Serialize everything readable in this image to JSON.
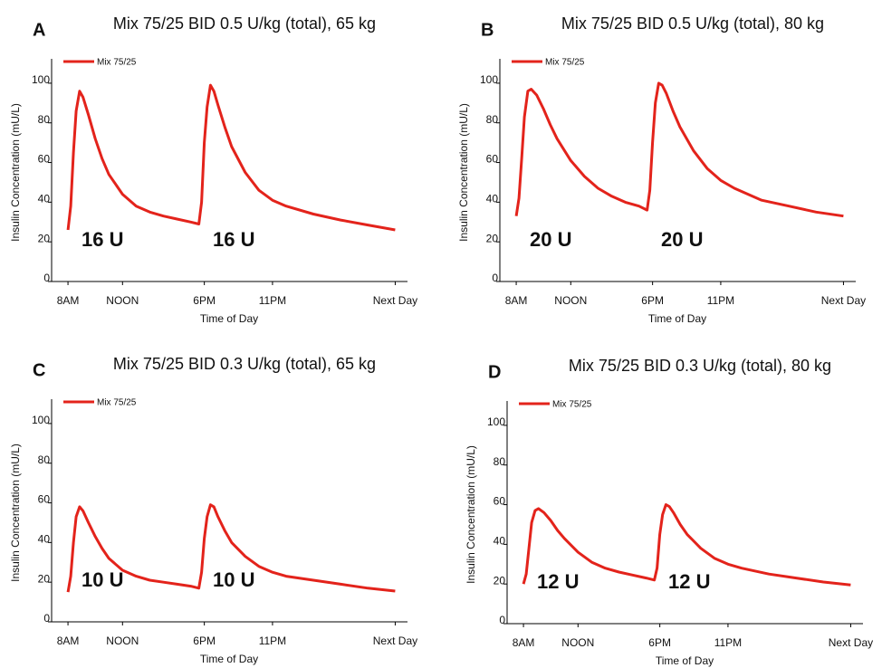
{
  "chart_data": [
    {
      "type": "line",
      "panel": "A",
      "title": "Mix 75/25 BID 0.5 U/kg (total), 65 kg",
      "ylabel": "Insulin Concentration (mU/L)",
      "xlabel": "Time of Day",
      "x": [
        8,
        8.2,
        8.4,
        8.6,
        8.85,
        9.1,
        9.5,
        10,
        10.5,
        11,
        12,
        13,
        14,
        15,
        16,
        17,
        17.6,
        17.8,
        18,
        18.2,
        18.45,
        18.7,
        19,
        19.5,
        20,
        21,
        22,
        23,
        24,
        26,
        28,
        30,
        32
      ],
      "series": [
        {
          "name": "Mix 75/25",
          "color": "#e3231b",
          "values": [
            26,
            38,
            65,
            86,
            96,
            93,
            84,
            72,
            62,
            54,
            44,
            38,
            35,
            33,
            31.5,
            30,
            29,
            40,
            70,
            88,
            99,
            96,
            89,
            78,
            68,
            55,
            46,
            41,
            38,
            34,
            31,
            28.5,
            26
          ]
        }
      ],
      "xlim": [
        6.8,
        32.9
      ],
      "xticks": [
        {
          "value": 8,
          "label": "8AM"
        },
        {
          "value": 12,
          "label": "NOON"
        },
        {
          "value": 18,
          "label": "6PM"
        },
        {
          "value": 23,
          "label": "11PM"
        },
        {
          "value": 32,
          "label": "Next Day"
        }
      ],
      "ylim": [
        0,
        110
      ],
      "yticks": [
        0,
        20,
        40,
        60,
        80,
        100
      ],
      "grid": false,
      "annotations": [
        "16 U",
        "16 U"
      ]
    },
    {
      "type": "line",
      "panel": "B",
      "title": "Mix 75/25 BID 0.5 U/kg (total), 80 kg",
      "ylabel": "Insulin Concentration (mU/L)",
      "xlabel": "Time of Day",
      "x": [
        8,
        8.2,
        8.4,
        8.6,
        8.85,
        9.1,
        9.5,
        10,
        10.5,
        11,
        12,
        13,
        14,
        15,
        16,
        17,
        17.6,
        17.8,
        18,
        18.2,
        18.45,
        18.7,
        19,
        19.5,
        20,
        21,
        22,
        23,
        24,
        26,
        28,
        30,
        32
      ],
      "series": [
        {
          "name": "Mix 75/25",
          "color": "#e3231b",
          "values": [
            33,
            42,
            62,
            83,
            96,
            97,
            94,
            87,
            79,
            72,
            61,
            53,
            47,
            43,
            40,
            38,
            36,
            46,
            70,
            90,
            100,
            99,
            95,
            86,
            78,
            66,
            57,
            51,
            47,
            41,
            38,
            35,
            33
          ]
        }
      ],
      "xlim": [
        6.8,
        32.9
      ],
      "xticks": [
        {
          "value": 8,
          "label": "8AM"
        },
        {
          "value": 12,
          "label": "NOON"
        },
        {
          "value": 18,
          "label": "6PM"
        },
        {
          "value": 23,
          "label": "11PM"
        },
        {
          "value": 32,
          "label": "Next Day"
        }
      ],
      "ylim": [
        0,
        110
      ],
      "yticks": [
        0,
        20,
        40,
        60,
        80,
        100
      ],
      "grid": false,
      "annotations": [
        "20 U",
        "20 U"
      ]
    },
    {
      "type": "line",
      "panel": "C",
      "title": "Mix 75/25 BID 0.3 U/kg (total), 65 kg",
      "ylabel": "Insulin Concentration (mU/L)",
      "xlabel": "Time of Day",
      "x": [
        8,
        8.2,
        8.4,
        8.6,
        8.85,
        9.1,
        9.5,
        10,
        10.5,
        11,
        12,
        13,
        14,
        15,
        16,
        17,
        17.6,
        17.8,
        18,
        18.2,
        18.45,
        18.7,
        19,
        19.5,
        20,
        21,
        22,
        23,
        24,
        26,
        28,
        30,
        32
      ],
      "series": [
        {
          "name": "Mix 75/25",
          "color": "#e3231b",
          "values": [
            15,
            23,
            40,
            53,
            58,
            56,
            50,
            43,
            37,
            32,
            26,
            23,
            21,
            20,
            19,
            18,
            17,
            25,
            42,
            53,
            59,
            58,
            53,
            46,
            40,
            33,
            28,
            25,
            23,
            21,
            19,
            17,
            15.5
          ]
        }
      ],
      "xlim": [
        6.8,
        32.9
      ],
      "xticks": [
        {
          "value": 8,
          "label": "8AM"
        },
        {
          "value": 12,
          "label": "NOON"
        },
        {
          "value": 18,
          "label": "6PM"
        },
        {
          "value": 23,
          "label": "11PM"
        },
        {
          "value": 32,
          "label": "Next Day"
        }
      ],
      "ylim": [
        0,
        110
      ],
      "yticks": [
        0,
        20,
        40,
        60,
        80,
        100
      ],
      "grid": false,
      "annotations": [
        "10 U",
        "10 U"
      ]
    },
    {
      "type": "line",
      "panel": "D",
      "title": "Mix 75/25 BID 0.3 U/kg (total), 80 kg",
      "ylabel": "Insulin Concentration (mU/L)",
      "xlabel": "Time of Day",
      "x": [
        8,
        8.2,
        8.4,
        8.6,
        8.85,
        9.1,
        9.5,
        10,
        10.5,
        11,
        12,
        13,
        14,
        15,
        16,
        17,
        17.6,
        17.8,
        18,
        18.2,
        18.45,
        18.7,
        19,
        19.5,
        20,
        21,
        22,
        23,
        24,
        26,
        28,
        30,
        32
      ],
      "series": [
        {
          "name": "Mix 75/25",
          "color": "#e3231b",
          "values": [
            20,
            25,
            38,
            51,
            57,
            58,
            56,
            52,
            47,
            43,
            36,
            31,
            28,
            26,
            24.5,
            23,
            22,
            28,
            45,
            55,
            60,
            59,
            56,
            50,
            45,
            38,
            33,
            30,
            28,
            25,
            23,
            21,
            19.5
          ]
        }
      ],
      "xlim": [
        6.8,
        32.9
      ],
      "xticks": [
        {
          "value": 8,
          "label": "8AM"
        },
        {
          "value": 12,
          "label": "NOON"
        },
        {
          "value": 18,
          "label": "6PM"
        },
        {
          "value": 23,
          "label": "11PM"
        },
        {
          "value": 32,
          "label": "Next Day"
        }
      ],
      "ylim": [
        0,
        110
      ],
      "yticks": [
        0,
        20,
        40,
        60,
        80,
        100
      ],
      "grid": false,
      "annotations": [
        "12 U",
        "12 U"
      ]
    }
  ]
}
